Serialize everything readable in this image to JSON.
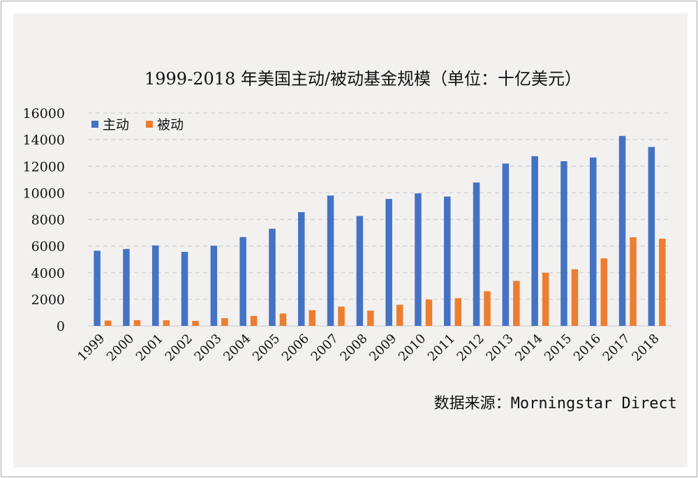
{
  "chart_data": {
    "type": "bar",
    "title": "1999-2018 年美国主动/被动基金规模（单位：十亿美元）",
    "categories": [
      "1999",
      "2000",
      "2001",
      "2002",
      "2003",
      "2004",
      "2005",
      "2006",
      "2007",
      "2008",
      "2009",
      "2010",
      "2011",
      "2012",
      "2013",
      "2014",
      "2015",
      "2016",
      "2017",
      "2018"
    ],
    "series": [
      {
        "name": "主动",
        "color": "#4472c4",
        "values": [
          5650,
          5780,
          6050,
          5560,
          6030,
          6680,
          7300,
          8550,
          9800,
          8260,
          9540,
          9960,
          9720,
          10780,
          12200,
          12760,
          12380,
          12660,
          14280,
          13450
        ]
      },
      {
        "name": "被动",
        "color": "#ed7d31",
        "values": [
          400,
          430,
          420,
          380,
          580,
          750,
          930,
          1180,
          1450,
          1150,
          1590,
          1980,
          2080,
          2600,
          3380,
          3990,
          4260,
          5080,
          6660,
          6550
        ]
      }
    ],
    "ylim": [
      0,
      16000
    ],
    "yticks": [
      "0",
      "2000",
      "4000",
      "6000",
      "8000",
      "10000",
      "12000",
      "14000",
      "16000"
    ],
    "xlabel": "",
    "ylabel": "",
    "grid": true,
    "legend_position": "top-left",
    "source": "数据来源：Morningstar Direct"
  }
}
